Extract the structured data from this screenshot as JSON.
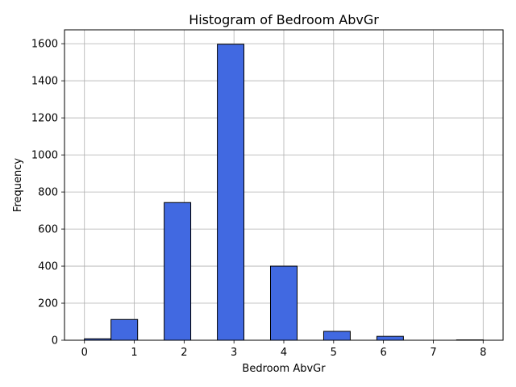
{
  "chart_data": {
    "type": "histogram",
    "title": "Histogram of Bedroom AbvGr",
    "xlabel": "Bedroom AbvGr",
    "ylabel": "Frequency",
    "xlim": [
      -0.4,
      8.4
    ],
    "ylim": [
      0,
      1675
    ],
    "xticks": [
      0,
      1,
      2,
      3,
      4,
      5,
      6,
      7,
      8
    ],
    "yticks": [
      0,
      200,
      400,
      600,
      800,
      1000,
      1200,
      1400,
      1600
    ],
    "grid": true,
    "bar_color": "#4169e1",
    "edge_color": "#000000",
    "bins": [
      {
        "x0": 0.0,
        "x1": 0.533,
        "count": 8
      },
      {
        "x0": 0.533,
        "x1": 1.067,
        "count": 112
      },
      {
        "x0": 1.067,
        "x1": 1.6,
        "count": 0
      },
      {
        "x0": 1.6,
        "x1": 2.133,
        "count": 743
      },
      {
        "x0": 2.133,
        "x1": 2.667,
        "count": 0
      },
      {
        "x0": 2.667,
        "x1": 3.2,
        "count": 1597
      },
      {
        "x0": 3.2,
        "x1": 3.733,
        "count": 0
      },
      {
        "x0": 3.733,
        "x1": 4.267,
        "count": 400
      },
      {
        "x0": 4.267,
        "x1": 4.8,
        "count": 0
      },
      {
        "x0": 4.8,
        "x1": 5.333,
        "count": 48
      },
      {
        "x0": 5.333,
        "x1": 5.867,
        "count": 0
      },
      {
        "x0": 5.867,
        "x1": 6.4,
        "count": 21
      },
      {
        "x0": 6.4,
        "x1": 6.933,
        "count": 0
      },
      {
        "x0": 6.933,
        "x1": 7.467,
        "count": 0
      },
      {
        "x0": 7.467,
        "x1": 8.0,
        "count": 2
      }
    ]
  }
}
